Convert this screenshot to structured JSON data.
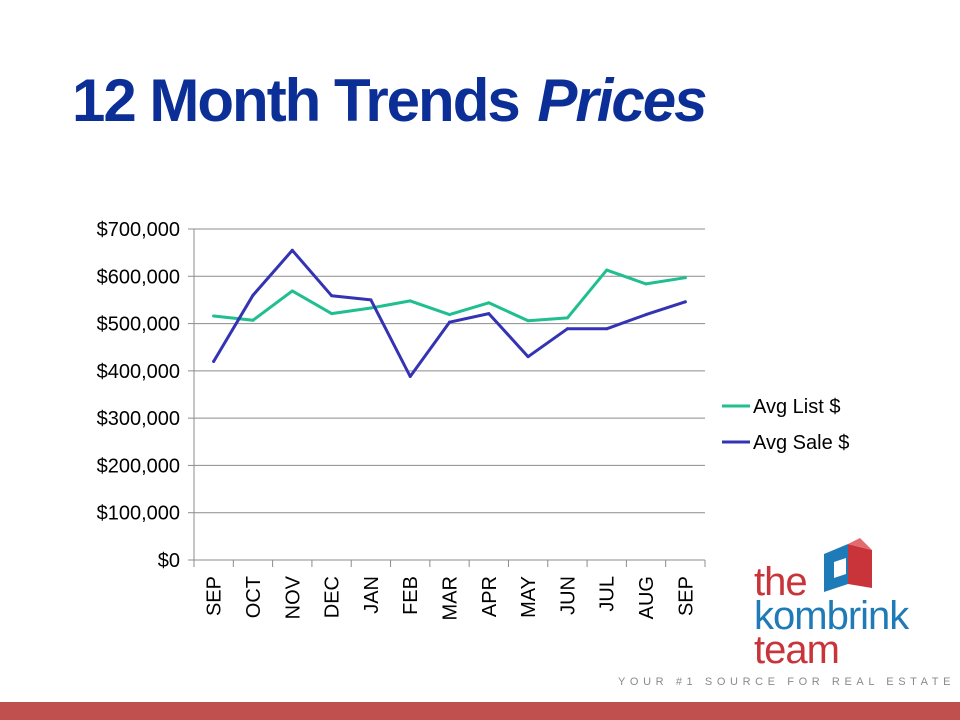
{
  "slide": {
    "title_main": "12 Month Trends",
    "title_emphasis": "Prices",
    "title_color": "#0b2f96"
  },
  "chart_data": {
    "type": "line",
    "categories": [
      "SEP",
      "OCT",
      "NOV",
      "DEC",
      "JAN",
      "FEB",
      "MAR",
      "APR",
      "MAY",
      "JUN",
      "JUL",
      "AUG",
      "SEP"
    ],
    "series": [
      {
        "name": "Avg List $",
        "color": "#1fbf8f",
        "values": [
          516000,
          507000,
          569000,
          521000,
          533000,
          548000,
          519000,
          544000,
          506000,
          512000,
          613000,
          584000,
          597000
        ]
      },
      {
        "name": "Avg Sale $",
        "color": "#3333b3",
        "values": [
          420000,
          560000,
          655000,
          559000,
          550000,
          388000,
          503000,
          521000,
          430000,
          489000,
          489000,
          519000,
          546000
        ]
      }
    ],
    "y_ticks": [
      "$0",
      "$100,000",
      "$200,000",
      "$300,000",
      "$400,000",
      "$500,000",
      "$600,000",
      "$700,000"
    ],
    "ylim": [
      0,
      700000
    ],
    "y_step": 100000,
    "grid": true,
    "legend_position": "right",
    "title": "",
    "xlabel": "",
    "ylabel": ""
  },
  "logo": {
    "word_the": "the",
    "word_kombrink": "kombrink",
    "word_team": "team",
    "color_red": "#c8343a",
    "color_blue": "#1f7ab8",
    "tagline": "YOUR #1 SOURCE FOR REAL ESTATE"
  },
  "footer": {
    "color": "#c0504d"
  }
}
